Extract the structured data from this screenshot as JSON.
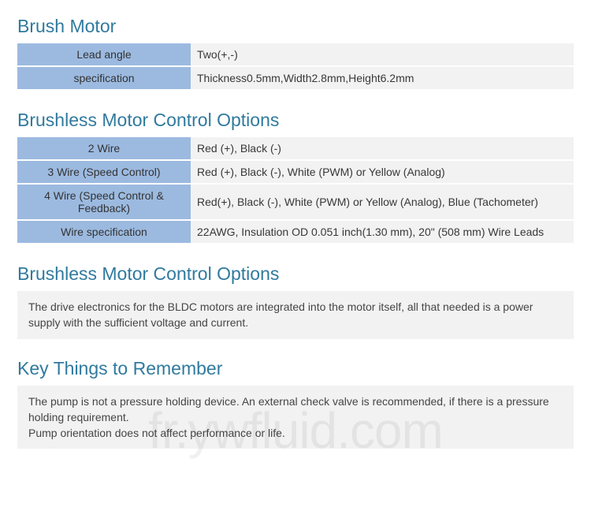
{
  "colors": {
    "heading": "#307a9e",
    "label_bg": "#9cbae0",
    "value_bg": "#f2f2f2",
    "text": "#383838",
    "body_bg": "#ffffff"
  },
  "section1": {
    "title": "Brush Motor",
    "rows": [
      {
        "label": "Lead angle",
        "value": "Two(+,-)"
      },
      {
        "label": "specification",
        "value": "Thickness0.5mm,Width2.8mm,Height6.2mm"
      }
    ]
  },
  "section2": {
    "title": "Brushless Motor Control Options",
    "rows": [
      {
        "label": "2 Wire",
        "value": "Red (+), Black (-)"
      },
      {
        "label": "3 Wire (Speed Control)",
        "value": "Red (+), Black (-), White (PWM) or Yellow (Analog)"
      },
      {
        "label": "4 Wire (Speed Control & Feedback)",
        "value": "Red(+), Black (-), White (PWM) or Yellow (Analog), Blue (Tachometer)"
      },
      {
        "label": "Wire specification",
        "value": "22AWG, Insulation OD 0.051 inch(1.30 mm), 20\" (508 mm) Wire Leads"
      }
    ]
  },
  "section3": {
    "title": "Brushless Motor Control Options",
    "text": "The drive electronics for the BLDC motors are integrated into the motor itself, all that needed is a power supply with the sufficient voltage and current."
  },
  "section4": {
    "title": "Key Things to Remember",
    "text": "The pump is not a pressure holding device. An external check valve is recommended, if there is a pressure holding requirement.\nPump orientation does not affect performance or life."
  },
  "watermark": "fr.ywfluid.com"
}
